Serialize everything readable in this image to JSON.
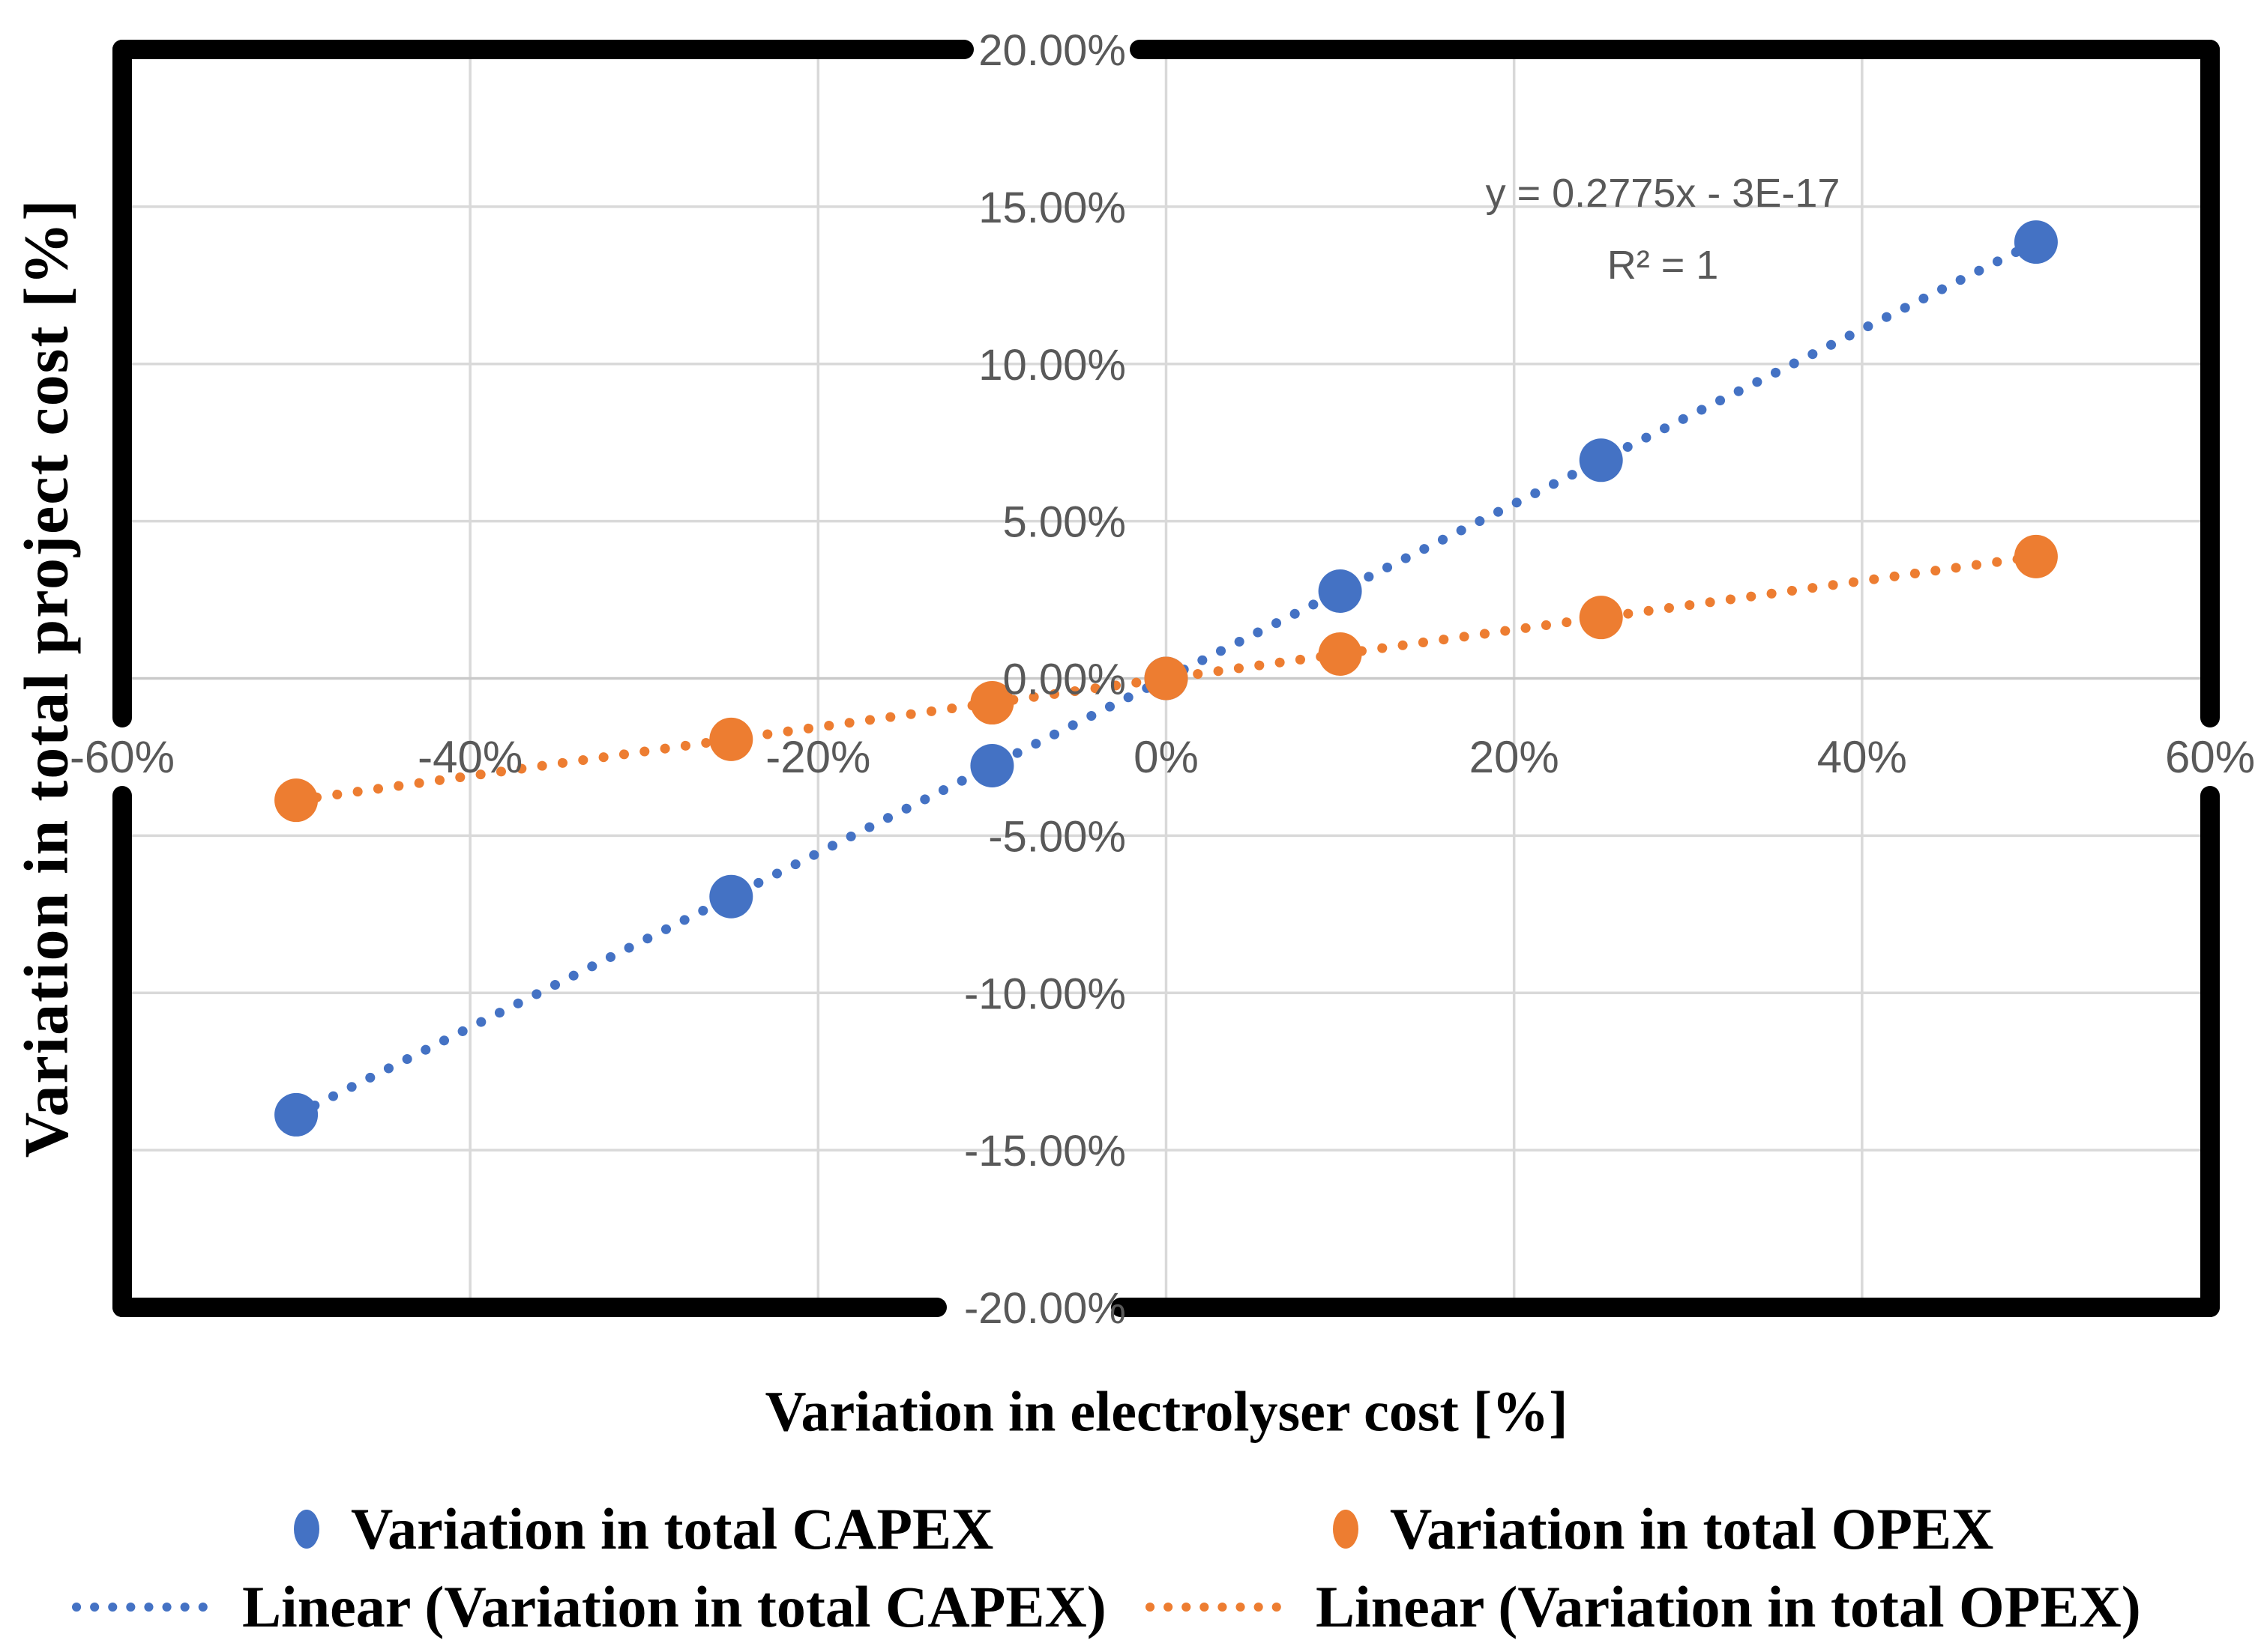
{
  "chart_data": {
    "type": "scatter",
    "title": "",
    "xlabel": "Variation in electrolyser cost [%]",
    "ylabel": "Variation in total project cost [%]",
    "xlim": [
      -60,
      60
    ],
    "ylim": [
      -20,
      20
    ],
    "grid": true,
    "legend_position": "bottom",
    "x_ticks": [
      {
        "value": -60,
        "label": "-60%"
      },
      {
        "value": -40,
        "label": "-40%"
      },
      {
        "value": -20,
        "label": "-20%"
      },
      {
        "value": 0,
        "label": "0%"
      },
      {
        "value": 20,
        "label": "20%"
      },
      {
        "value": 40,
        "label": "40%"
      },
      {
        "value": 60,
        "label": "60%"
      }
    ],
    "y_ticks": [
      {
        "value": 20,
        "label": "20.00%"
      },
      {
        "value": 15,
        "label": "15.00%"
      },
      {
        "value": 10,
        "label": "10.00%"
      },
      {
        "value": 5,
        "label": "5.00%"
      },
      {
        "value": 0,
        "label": "0.00%"
      },
      {
        "value": -5,
        "label": "-5.00%"
      },
      {
        "value": -10,
        "label": "-10.00%"
      },
      {
        "value": -15,
        "label": "-15.00%"
      },
      {
        "value": -20,
        "label": "-20.00%"
      }
    ],
    "series": [
      {
        "name": "Variation in total CAPEX",
        "color": "#4472C4",
        "x": [
          -50,
          -25,
          -10,
          0,
          10,
          25,
          50
        ],
        "y": [
          -13.875,
          -6.9375,
          -2.775,
          0,
          2.775,
          6.9375,
          13.875
        ],
        "trendline": {
          "label": "Linear (Variation in total CAPEX)",
          "slope": 0.2775,
          "intercept": 0,
          "x_range": [
            -50,
            50
          ]
        }
      },
      {
        "name": "Variation in total OPEX",
        "color": "#ED7D31",
        "x": [
          -50,
          -25,
          -10,
          0,
          10,
          25,
          50
        ],
        "y": [
          -3.875,
          -1.9375,
          -0.775,
          0,
          0.775,
          1.9375,
          3.875
        ],
        "trendline": {
          "label": "Linear (Variation in total OPEX)",
          "slope": 0.0775,
          "intercept": 0,
          "x_range": [
            -50,
            50
          ]
        }
      }
    ],
    "annotation": {
      "equation": "y = 0.2775x - 3E-17",
      "r_squared": "R² = 1"
    },
    "colors": {
      "gridline": "#D9D9D9",
      "zero_line": "#C9C9C9",
      "border": "#000000",
      "tick_text": "#595959",
      "annotation_text": "#595959"
    }
  }
}
